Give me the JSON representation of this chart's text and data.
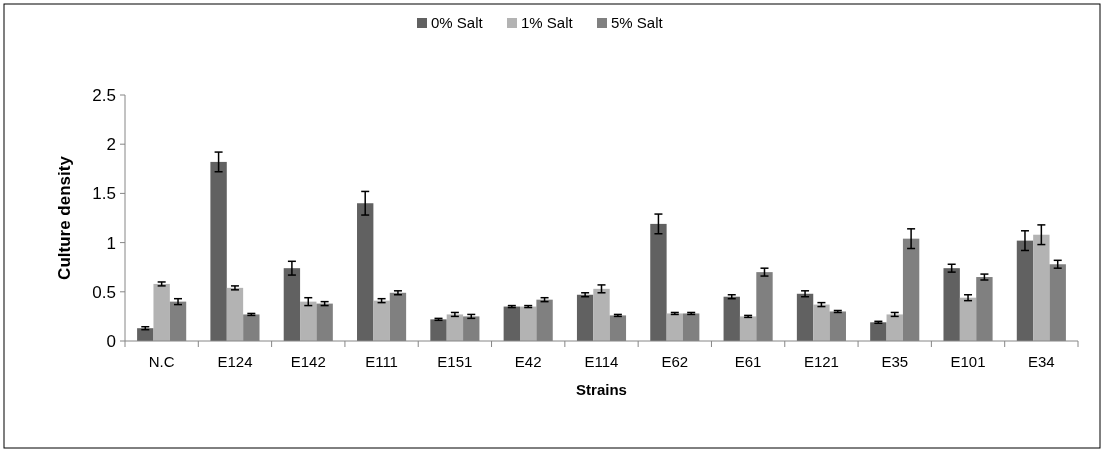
{
  "chart_data": {
    "type": "bar",
    "xlabel": "Strains",
    "ylabel": "Culture density",
    "categories": [
      "N.C",
      "E124",
      "E142",
      "E111",
      "E151",
      "E42",
      "E114",
      "E62",
      "E61",
      "E121",
      "E35",
      "E101",
      "E34"
    ],
    "series": [
      {
        "name": "0% Salt",
        "color": "#616161",
        "values": [
          0.13,
          1.82,
          0.74,
          1.4,
          0.22,
          0.35,
          0.47,
          1.19,
          0.45,
          0.48,
          0.19,
          0.74,
          1.02
        ],
        "errors": [
          0.015,
          0.1,
          0.07,
          0.12,
          0.01,
          0.01,
          0.02,
          0.1,
          0.02,
          0.03,
          0.01,
          0.04,
          0.1
        ]
      },
      {
        "name": "1% Salt",
        "color": "#b3b3b3",
        "values": [
          0.58,
          0.54,
          0.4,
          0.41,
          0.27,
          0.35,
          0.53,
          0.28,
          0.25,
          0.37,
          0.27,
          0.44,
          1.08
        ],
        "errors": [
          0.02,
          0.02,
          0.04,
          0.02,
          0.02,
          0.01,
          0.04,
          0.01,
          0.01,
          0.02,
          0.02,
          0.03,
          0.1
        ]
      },
      {
        "name": "5% Salt",
        "color": "#808080",
        "values": [
          0.4,
          0.27,
          0.38,
          0.49,
          0.25,
          0.42,
          0.26,
          0.28,
          0.7,
          0.3,
          1.04,
          0.65,
          0.78
        ],
        "errors": [
          0.03,
          0.01,
          0.02,
          0.02,
          0.02,
          0.02,
          0.01,
          0.01,
          0.04,
          0.01,
          0.1,
          0.03,
          0.04
        ]
      }
    ],
    "ylim": [
      0,
      2.5
    ],
    "yticks": [
      0,
      0.5,
      1,
      1.5,
      2,
      2.5
    ],
    "grid": false,
    "legend": "top"
  }
}
